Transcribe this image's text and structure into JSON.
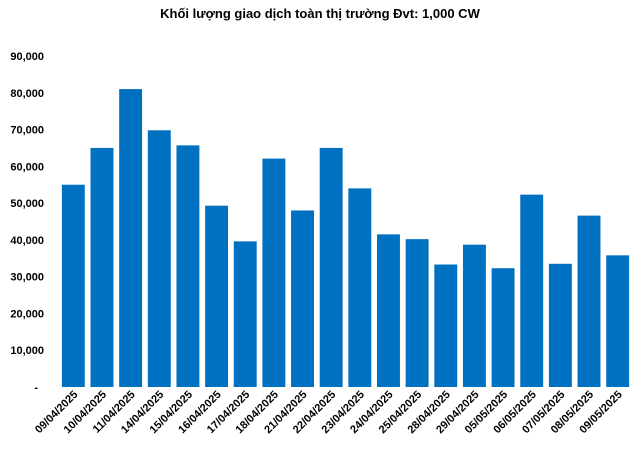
{
  "chart_data": {
    "type": "bar",
    "title": "Khối lượng giao dịch toàn thị trường Đvt: 1,000 CW",
    "categories": [
      "09/04/2025",
      "10/04/2025",
      "11/04/2025",
      "14/04/2025",
      "15/04/2025",
      "16/04/2025",
      "17/04/2025",
      "18/04/2025",
      "21/04/2025",
      "22/04/2025",
      "23/04/2025",
      "24/04/2025",
      "25/04/2025",
      "28/04/2025",
      "29/04/2025",
      "05/05/2025",
      "06/05/2025",
      "07/05/2025",
      "08/05/2025",
      "09/05/2025"
    ],
    "values": [
      55000,
      65000,
      81000,
      69800,
      65700,
      49300,
      39600,
      62100,
      48000,
      65000,
      54000,
      41500,
      40200,
      33300,
      38700,
      32300,
      52300,
      33500,
      46600,
      35800
    ],
    "ylim": [
      0,
      90000
    ],
    "yticks": [
      0,
      10000,
      20000,
      30000,
      40000,
      50000,
      60000,
      70000,
      80000,
      90000
    ],
    "ytick_labels": [
      "-",
      "10,000",
      "20,000",
      "30,000",
      "40,000",
      "50,000",
      "60,000",
      "70,000",
      "80,000",
      "90,000"
    ],
    "bar_color": "#0070C0",
    "grid": false,
    "xlabel": "",
    "ylabel": ""
  }
}
